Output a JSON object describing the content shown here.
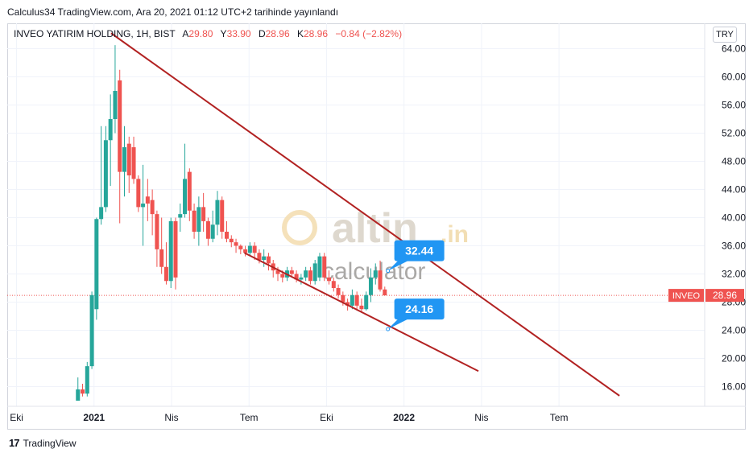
{
  "header": {
    "published_line": "Calculus34 TradingView.com, Ara 20, 2021 01:12 UTC+2 tarihinde yayınlandı"
  },
  "legend": {
    "symbol": "INVEO YATIRIM HOLDING, 1H, BIST",
    "open_label": "A",
    "open_value": "29.80",
    "high_label": "Y",
    "high_value": "33.90",
    "low_label": "D",
    "low_value": "28.96",
    "close_label": "K",
    "close_value": "28.96",
    "change": "−0.84 (−2.82%)"
  },
  "currency_button": "TRY",
  "watermark": {
    "brand": "altin",
    "brand_suffix": ".in",
    "sub": "calculator"
  },
  "footer": {
    "brand": "TradingView",
    "logo_mark": "17"
  },
  "colors": {
    "up": "#26a69a",
    "down": "#ef5350",
    "trend": "#b22222",
    "callout": "#2196f3",
    "last_price": "#ef5350"
  },
  "chart_data": {
    "type": "candlestick",
    "ticker_tag": "INVEO",
    "last_price": 28.96,
    "last_price_label": "28.96",
    "ylim": [
      13.2,
      67.6
    ],
    "y_ticks": [
      16,
      20,
      24,
      28,
      32,
      36,
      40,
      44,
      48,
      52,
      56,
      60,
      64
    ],
    "y_tick_labels": [
      "16.00",
      "20.00",
      "24.00",
      "28.00",
      "32.00",
      "36.00",
      "40.00",
      "44.00",
      "48.00",
      "52.00",
      "56.00",
      "60.00",
      "64.00"
    ],
    "x_time_range": [
      2020.72,
      2022.97
    ],
    "x_ticks": [
      {
        "t": 2020.75,
        "label": "Eki",
        "bold": false
      },
      {
        "t": 2021.0,
        "label": "2021",
        "bold": true
      },
      {
        "t": 2021.25,
        "label": "Nis",
        "bold": false
      },
      {
        "t": 2021.5,
        "label": "Tem",
        "bold": false
      },
      {
        "t": 2021.75,
        "label": "Eki",
        "bold": false
      },
      {
        "t": 2022.0,
        "label": "2022",
        "bold": true
      },
      {
        "t": 2022.25,
        "label": "Nis",
        "bold": false
      },
      {
        "t": 2022.5,
        "label": "Tem",
        "bold": false
      }
    ],
    "candles": [
      {
        "t": 2020.948,
        "o": 14.0,
        "h": 17.3,
        "l": 14.0,
        "c": 15.6
      },
      {
        "t": 2020.963,
        "o": 15.6,
        "h": 16.4,
        "l": 14.6,
        "c": 15.0
      },
      {
        "t": 2020.978,
        "o": 15.0,
        "h": 19.5,
        "l": 14.6,
        "c": 18.9
      },
      {
        "t": 2020.993,
        "o": 18.9,
        "h": 29.5,
        "l": 18.5,
        "c": 29.0
      },
      {
        "t": 2021.008,
        "o": 27.0,
        "h": 40.0,
        "l": 25.5,
        "c": 39.8
      },
      {
        "t": 2021.023,
        "o": 39.8,
        "h": 53.0,
        "l": 39.0,
        "c": 41.5
      },
      {
        "t": 2021.038,
        "o": 41.5,
        "h": 53.0,
        "l": 40.8,
        "c": 51.0
      },
      {
        "t": 2021.053,
        "o": 51.0,
        "h": 57.5,
        "l": 44.5,
        "c": 54.0
      },
      {
        "t": 2021.068,
        "o": 54.0,
        "h": 64.5,
        "l": 52.0,
        "c": 58.0
      },
      {
        "t": 2021.083,
        "o": 59.5,
        "h": 61.0,
        "l": 39.2,
        "c": 46.5
      },
      {
        "t": 2021.098,
        "o": 46.5,
        "h": 53.0,
        "l": 43.0,
        "c": 50.0
      },
      {
        "t": 2021.113,
        "o": 50.5,
        "h": 51.5,
        "l": 43.5,
        "c": 46.0
      },
      {
        "t": 2021.128,
        "o": 50.0,
        "h": 51.5,
        "l": 44.8,
        "c": 45.5
      },
      {
        "t": 2021.143,
        "o": 45.5,
        "h": 46.0,
        "l": 40.8,
        "c": 41.5
      },
      {
        "t": 2021.158,
        "o": 41.5,
        "h": 47.5,
        "l": 36.0,
        "c": 42.0
      },
      {
        "t": 2021.173,
        "o": 43.0,
        "h": 45.5,
        "l": 39.5,
        "c": 42.0
      },
      {
        "t": 2021.188,
        "o": 42.5,
        "h": 44.0,
        "l": 37.5,
        "c": 40.5
      },
      {
        "t": 2021.203,
        "o": 40.5,
        "h": 41.0,
        "l": 33.0,
        "c": 35.5
      },
      {
        "t": 2021.218,
        "o": 35.5,
        "h": 40.0,
        "l": 32.0,
        "c": 33.0
      },
      {
        "t": 2021.233,
        "o": 33.0,
        "h": 36.5,
        "l": 30.5,
        "c": 31.0
      },
      {
        "t": 2021.248,
        "o": 31.0,
        "h": 40.0,
        "l": 30.0,
        "c": 39.5
      },
      {
        "t": 2021.263,
        "o": 39.5,
        "h": 40.0,
        "l": 29.8,
        "c": 31.5
      },
      {
        "t": 2021.278,
        "o": 40.0,
        "h": 42.0,
        "l": 38.0,
        "c": 40.5
      },
      {
        "t": 2021.293,
        "o": 40.5,
        "h": 50.5,
        "l": 40.0,
        "c": 45.5
      },
      {
        "t": 2021.308,
        "o": 46.5,
        "h": 47.0,
        "l": 39.5,
        "c": 41.0
      },
      {
        "t": 2021.323,
        "o": 41.0,
        "h": 42.0,
        "l": 37.0,
        "c": 38.0
      },
      {
        "t": 2021.338,
        "o": 38.0,
        "h": 43.0,
        "l": 36.0,
        "c": 41.5
      },
      {
        "t": 2021.353,
        "o": 41.5,
        "h": 43.5,
        "l": 38.0,
        "c": 39.5
      },
      {
        "t": 2021.368,
        "o": 39.5,
        "h": 40.0,
        "l": 36.0,
        "c": 37.0
      },
      {
        "t": 2021.383,
        "o": 37.0,
        "h": 41.0,
        "l": 36.5,
        "c": 39.0
      },
      {
        "t": 2021.398,
        "o": 39.0,
        "h": 43.8,
        "l": 37.5,
        "c": 42.5
      },
      {
        "t": 2021.413,
        "o": 42.5,
        "h": 43.0,
        "l": 37.0,
        "c": 38.0
      },
      {
        "t": 2021.428,
        "o": 38.0,
        "h": 39.5,
        "l": 36.5,
        "c": 37.0
      },
      {
        "t": 2021.443,
        "o": 37.0,
        "h": 37.5,
        "l": 35.8,
        "c": 36.5
      },
      {
        "t": 2021.458,
        "o": 36.5,
        "h": 37.0,
        "l": 35.0,
        "c": 36.0
      },
      {
        "t": 2021.473,
        "o": 36.0,
        "h": 36.2,
        "l": 34.8,
        "c": 35.5
      },
      {
        "t": 2021.488,
        "o": 35.5,
        "h": 36.0,
        "l": 34.5,
        "c": 35.0
      },
      {
        "t": 2021.503,
        "o": 35.0,
        "h": 36.5,
        "l": 34.6,
        "c": 36.0
      },
      {
        "t": 2021.518,
        "o": 36.0,
        "h": 36.5,
        "l": 34.0,
        "c": 35.0
      },
      {
        "t": 2021.533,
        "o": 35.0,
        "h": 35.5,
        "l": 33.5,
        "c": 34.0
      },
      {
        "t": 2021.548,
        "o": 34.0,
        "h": 35.5,
        "l": 33.0,
        "c": 34.5
      },
      {
        "t": 2021.563,
        "o": 34.5,
        "h": 35.0,
        "l": 32.5,
        "c": 33.5
      },
      {
        "t": 2021.578,
        "o": 33.5,
        "h": 34.0,
        "l": 31.5,
        "c": 32.5
      },
      {
        "t": 2021.593,
        "o": 32.5,
        "h": 33.0,
        "l": 31.0,
        "c": 32.0
      },
      {
        "t": 2021.608,
        "o": 32.0,
        "h": 32.5,
        "l": 30.8,
        "c": 31.5
      },
      {
        "t": 2021.623,
        "o": 31.5,
        "h": 33.0,
        "l": 31.0,
        "c": 32.5
      },
      {
        "t": 2021.638,
        "o": 32.5,
        "h": 33.0,
        "l": 31.5,
        "c": 32.0
      },
      {
        "t": 2021.653,
        "o": 32.0,
        "h": 32.5,
        "l": 30.8,
        "c": 31.2
      },
      {
        "t": 2021.668,
        "o": 31.2,
        "h": 32.0,
        "l": 30.5,
        "c": 31.5
      },
      {
        "t": 2021.683,
        "o": 31.5,
        "h": 33.0,
        "l": 31.0,
        "c": 32.5
      },
      {
        "t": 2021.698,
        "o": 32.5,
        "h": 33.0,
        "l": 30.5,
        "c": 31.0
      },
      {
        "t": 2021.713,
        "o": 31.0,
        "h": 34.0,
        "l": 30.5,
        "c": 33.5
      },
      {
        "t": 2021.728,
        "o": 31.5,
        "h": 35.0,
        "l": 31.0,
        "c": 34.5
      },
      {
        "t": 2021.743,
        "o": 34.5,
        "h": 35.0,
        "l": 31.0,
        "c": 31.5
      },
      {
        "t": 2021.758,
        "o": 31.5,
        "h": 32.5,
        "l": 30.5,
        "c": 31.0
      },
      {
        "t": 2021.773,
        "o": 31.0,
        "h": 31.5,
        "l": 29.5,
        "c": 30.0
      },
      {
        "t": 2021.788,
        "o": 30.0,
        "h": 30.5,
        "l": 28.5,
        "c": 29.0
      },
      {
        "t": 2021.803,
        "o": 29.0,
        "h": 29.5,
        "l": 27.5,
        "c": 28.0
      },
      {
        "t": 2021.818,
        "o": 28.0,
        "h": 28.5,
        "l": 26.8,
        "c": 27.5
      },
      {
        "t": 2021.833,
        "o": 27.5,
        "h": 29.8,
        "l": 27.0,
        "c": 29.0
      },
      {
        "t": 2021.848,
        "o": 29.0,
        "h": 29.5,
        "l": 27.0,
        "c": 27.5
      },
      {
        "t": 2021.863,
        "o": 27.5,
        "h": 28.5,
        "l": 26.5,
        "c": 27.0
      },
      {
        "t": 2021.878,
        "o": 27.0,
        "h": 29.5,
        "l": 26.8,
        "c": 29.0
      },
      {
        "t": 2021.893,
        "o": 29.0,
        "h": 32.8,
        "l": 28.0,
        "c": 31.5
      },
      {
        "t": 2021.908,
        "o": 31.5,
        "h": 33.5,
        "l": 30.5,
        "c": 32.5
      },
      {
        "t": 2021.923,
        "o": 32.5,
        "h": 33.9,
        "l": 29.5,
        "c": 29.8
      },
      {
        "t": 2021.938,
        "o": 29.8,
        "h": 30.2,
        "l": 28.96,
        "c": 28.96
      }
    ],
    "trendlines": [
      {
        "t1": 2021.055,
        "v1": 66.2,
        "t2": 2022.695,
        "v2": 14.7
      },
      {
        "t1": 2021.485,
        "v1": 35.0,
        "t2": 2022.24,
        "v2": 18.2
      }
    ],
    "callouts": [
      {
        "label": "32.44",
        "t": 2021.948,
        "v": 32.44
      },
      {
        "label": "24.16",
        "t": 2021.948,
        "v": 24.16
      }
    ]
  }
}
